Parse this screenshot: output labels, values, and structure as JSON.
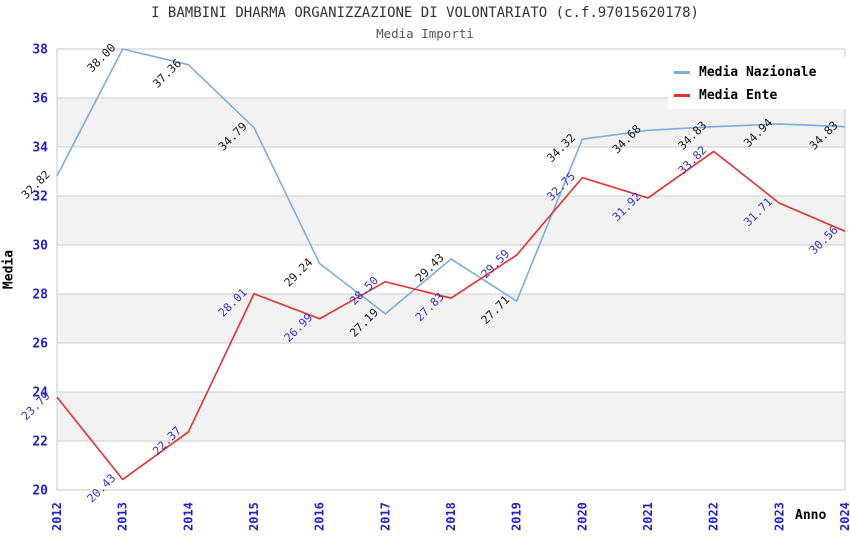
{
  "header": {
    "title": "I BAMBINI DHARMA ORGANIZZAZIONE DI VOLONTARIATO (c.f.97015620178)",
    "subtitle": "Media Importi"
  },
  "chart_data": {
    "type": "line",
    "title": "I BAMBINI DHARMA ORGANIZZAZIONE DI VOLONTARIATO (c.f.97015620178)",
    "subtitle": "Media Importi",
    "xlabel": "Anno",
    "ylabel": "Media",
    "x": [
      2012,
      2013,
      2014,
      2015,
      2016,
      2017,
      2018,
      2019,
      2020,
      2021,
      2022,
      2023,
      2024
    ],
    "ylim": [
      20,
      38
    ],
    "ytick_step": 2,
    "grid": "horizontal gridlines every 2 units with alternating white/gray bands",
    "legend_position": "top-right",
    "point_markers": false,
    "data_label_format": "2 decimals, rotated 45 degrees",
    "series": [
      {
        "name": "Media Nazionale",
        "color": "#7aaede",
        "label_color": "#1a1a1a",
        "values": [
          32.82,
          38.0,
          37.36,
          34.79,
          29.24,
          27.19,
          29.43,
          27.71,
          34.32,
          34.68,
          34.83,
          34.94,
          34.83
        ]
      },
      {
        "name": "Media Ente",
        "color": "#e53030",
        "label_color": "#3434c8",
        "values": [
          23.79,
          20.43,
          22.37,
          28.01,
          26.99,
          28.5,
          27.83,
          29.59,
          32.75,
          31.92,
          33.82,
          31.71,
          30.56
        ]
      }
    ],
    "style_colors": {
      "tick_label": "#1f1fd0",
      "gridline": "#cccccc",
      "band": "#f2f2f2",
      "plot_border": "#c9c9c9",
      "title": "#333333",
      "subtitle": "#555555",
      "axis_label": "#000000",
      "background": "#ffffff"
    }
  }
}
